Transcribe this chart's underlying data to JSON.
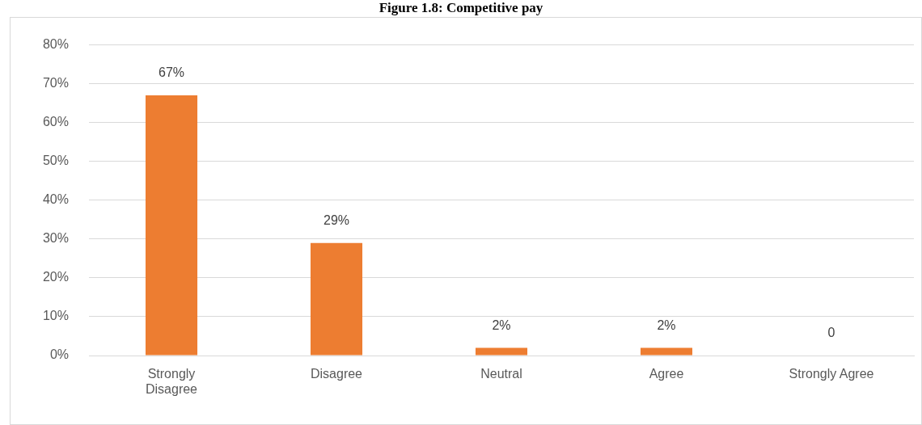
{
  "chart_data": {
    "type": "bar",
    "title": "Figure 1.8: Competitive pay",
    "categories": [
      "Strongly Disagree",
      "Disagree",
      "Neutral",
      "Agree",
      "Strongly Agree"
    ],
    "values": [
      67,
      29,
      2,
      2,
      0
    ],
    "color": "#ed7d31",
    "value_labels": [
      "67%",
      "29%",
      "2%",
      "2%",
      "0"
    ],
    "ylim": [
      0,
      80
    ],
    "yticks": [
      {
        "value": 0,
        "label": "0%"
      },
      {
        "value": 10,
        "label": "10%"
      },
      {
        "value": 20,
        "label": "20%"
      },
      {
        "value": 30,
        "label": "30%"
      },
      {
        "value": 40,
        "label": "40%"
      },
      {
        "value": 50,
        "label": "50%"
      },
      {
        "value": 60,
        "label": "60%"
      },
      {
        "value": 70,
        "label": "70%"
      },
      {
        "value": 80,
        "label": "80%"
      }
    ],
    "grid": "y"
  }
}
